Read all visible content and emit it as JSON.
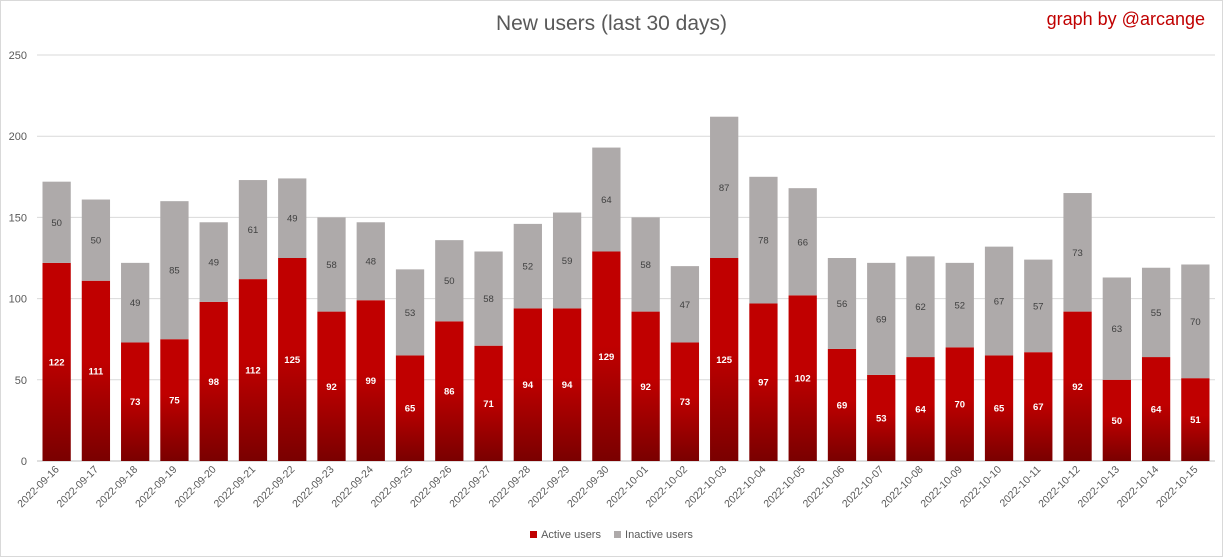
{
  "chart_data": {
    "type": "bar",
    "stacked": true,
    "title": "New users (last 30 days)",
    "credit": "graph by @arcange",
    "ylim": [
      0,
      250
    ],
    "yticks": [
      0,
      50,
      100,
      150,
      200,
      250
    ],
    "grid": true,
    "legend_position": "bottom",
    "categories": [
      "2022-09-16",
      "2022-09-17",
      "2022-09-18",
      "2022-09-19",
      "2022-09-20",
      "2022-09-21",
      "2022-09-22",
      "2022-09-23",
      "2022-09-24",
      "2022-09-25",
      "2022-09-26",
      "2022-09-27",
      "2022-09-28",
      "2022-09-29",
      "2022-09-30",
      "2022-10-01",
      "2022-10-02",
      "2022-10-03",
      "2022-10-04",
      "2022-10-05",
      "2022-10-06",
      "2022-10-07",
      "2022-10-08",
      "2022-10-09",
      "2022-10-10",
      "2022-10-11",
      "2022-10-12",
      "2022-10-13",
      "2022-10-14",
      "2022-10-15"
    ],
    "series": [
      {
        "name": "Active users",
        "color": "#c00000",
        "color_dark": "#7a0000",
        "values": [
          122,
          111,
          73,
          75,
          98,
          112,
          125,
          92,
          99,
          65,
          86,
          71,
          94,
          94,
          129,
          92,
          73,
          125,
          97,
          102,
          69,
          53,
          64,
          70,
          65,
          67,
          92,
          50,
          64,
          51
        ]
      },
      {
        "name": "Inactive users",
        "color": "#aeaaaa",
        "values": [
          50,
          50,
          49,
          85,
          49,
          61,
          49,
          58,
          48,
          53,
          50,
          58,
          52,
          59,
          64,
          58,
          47,
          87,
          78,
          66,
          56,
          69,
          62,
          52,
          67,
          57,
          73,
          63,
          55,
          70
        ]
      }
    ]
  }
}
